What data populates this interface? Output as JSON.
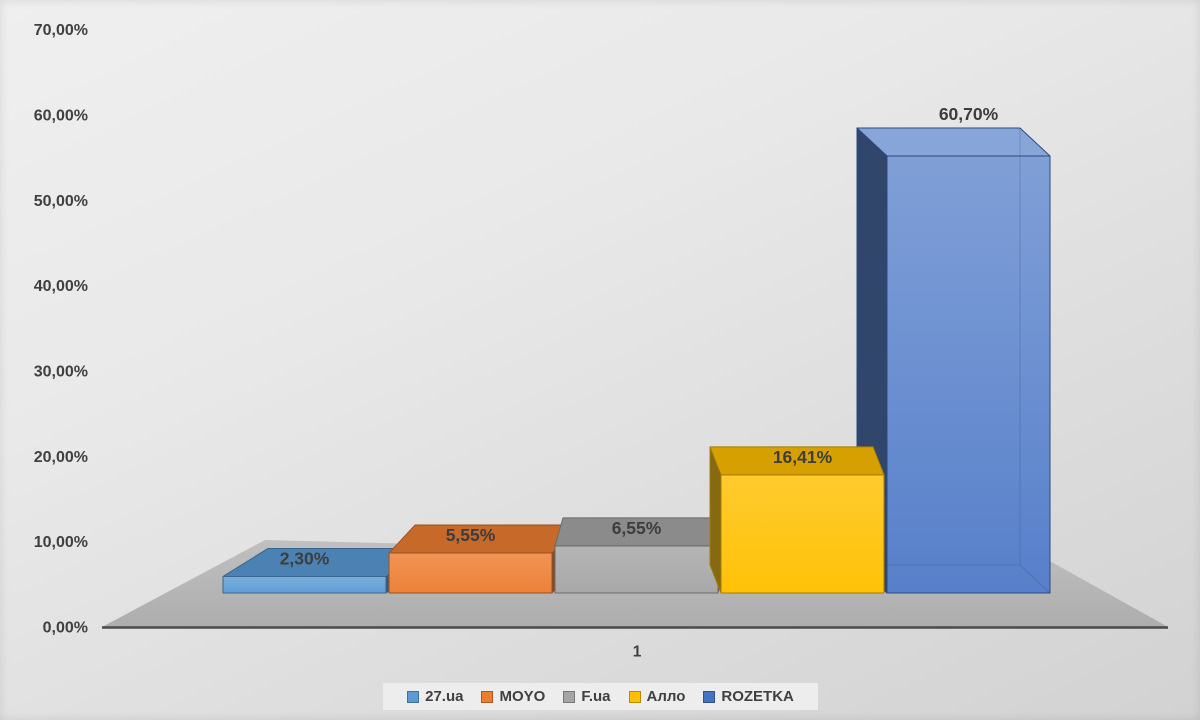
{
  "chart_data": {
    "type": "bar",
    "subtype": "3d-column-perspective",
    "title": "",
    "categories": [
      "1"
    ],
    "series": [
      {
        "name": "27.ua",
        "value": 2.3,
        "data_label": "2,30%",
        "color": "#5B9BD5"
      },
      {
        "name": "MOYO",
        "value": 5.55,
        "data_label": "5,55%",
        "color": "#ED7D31"
      },
      {
        "name": "F.ua",
        "value": 6.55,
        "data_label": "6,55%",
        "color": "#A5A5A5"
      },
      {
        "name": "Алло",
        "value": 16.41,
        "data_label": "16,41%",
        "color": "#FFC000"
      },
      {
        "name": "ROZETKA",
        "value": 60.7,
        "data_label": "60,70%",
        "color": "#4472C4"
      }
    ],
    "y_axis": {
      "min": 0,
      "max": 70,
      "step": 10,
      "tick_labels": [
        "0,00%",
        "10,00%",
        "20,00%",
        "30,00%",
        "40,00%",
        "50,00%",
        "60,00%",
        "70,00%"
      ]
    },
    "x_axis": {
      "category_label": "1"
    },
    "legend": {
      "position": "bottom",
      "entries": [
        "27.ua",
        "MOYO",
        "F.ua",
        "Алло",
        "ROZETKA"
      ]
    },
    "gridlines": false,
    "ylim": [
      0,
      70
    ],
    "text_color": "#404040",
    "floor_color": "#b6b6b6"
  }
}
